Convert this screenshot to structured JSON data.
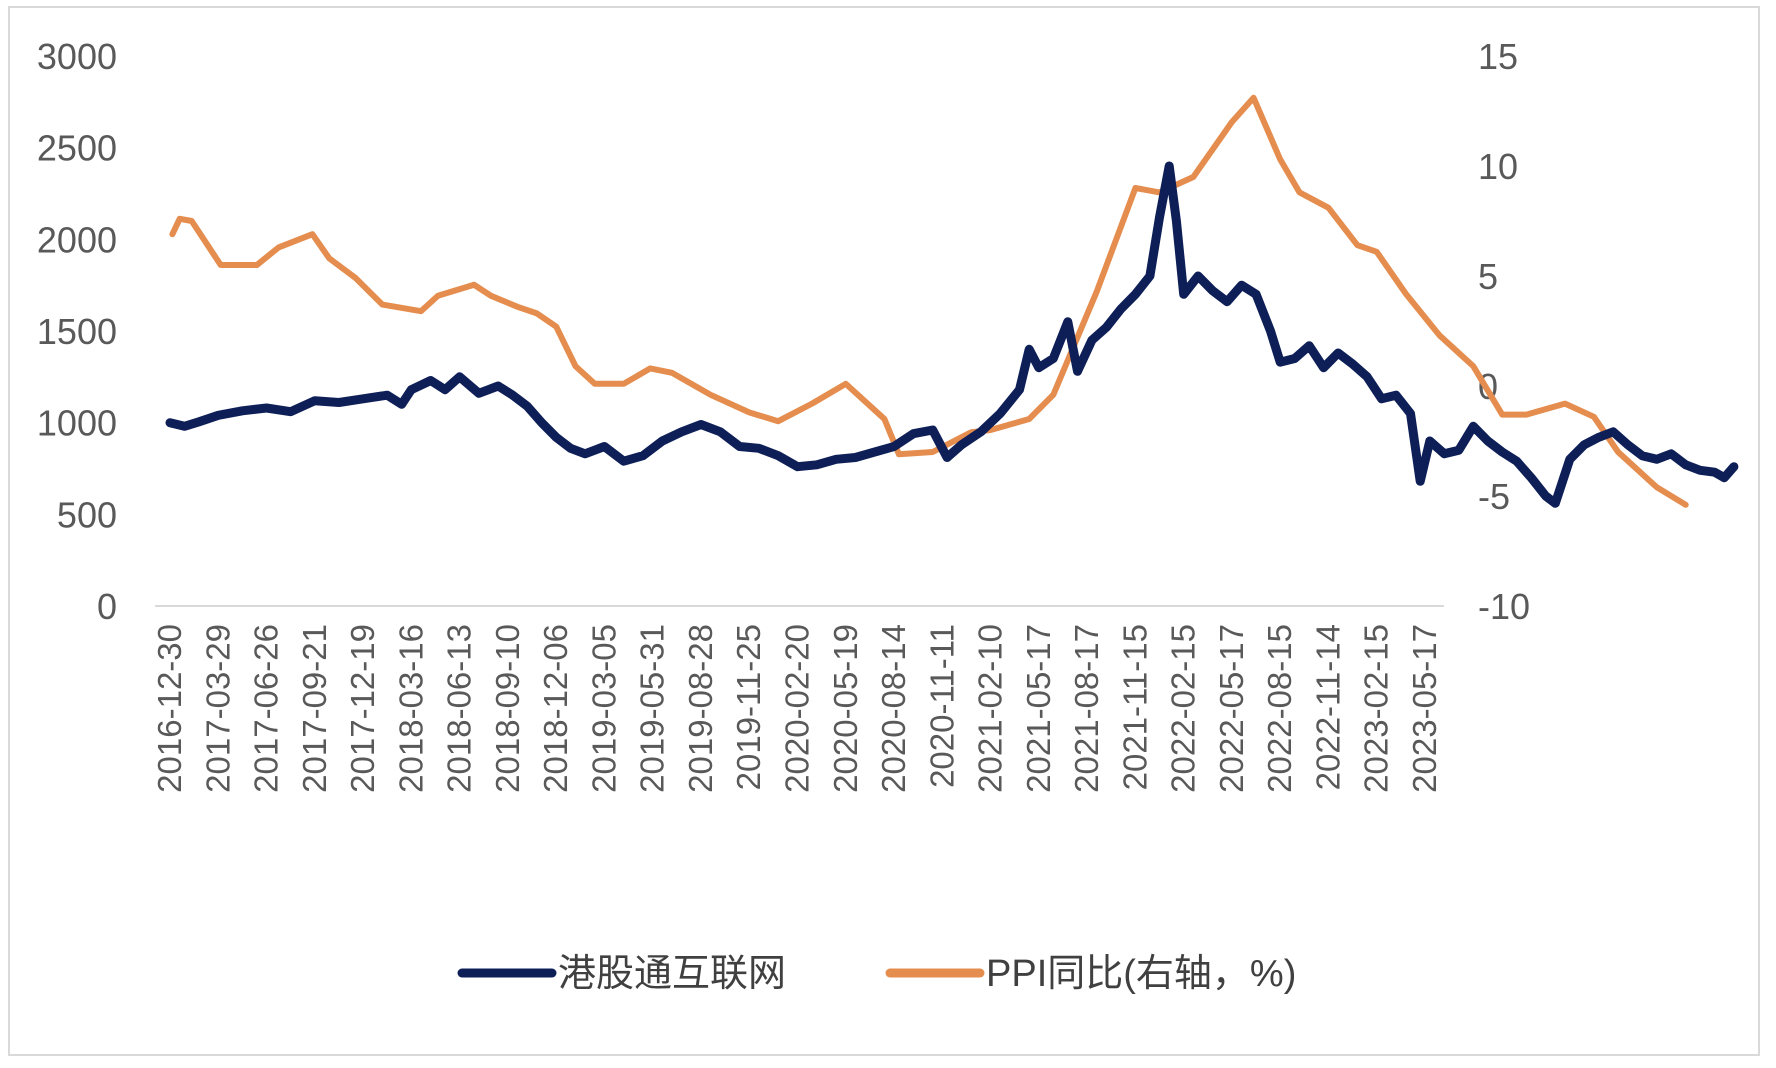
{
  "chart_data": {
    "type": "line",
    "title": "",
    "xlabel": "",
    "ylabel_left": "",
    "ylabel_right": "",
    "y_left": {
      "min": 0,
      "max": 3000,
      "ticks": [
        0,
        500,
        1000,
        1500,
        2000,
        2500,
        3000
      ]
    },
    "y_right": {
      "min": -10,
      "max": 15,
      "ticks": [
        -10,
        -5,
        0,
        5,
        10,
        15
      ]
    },
    "x_ticks": [
      "2016-12-30",
      "2017-03-29",
      "2017-06-26",
      "2017-09-21",
      "2017-12-19",
      "2018-03-16",
      "2018-06-13",
      "2018-09-10",
      "2018-12-06",
      "2019-03-05",
      "2019-05-31",
      "2019-08-28",
      "2019-11-25",
      "2020-02-20",
      "2020-05-19",
      "2020-08-14",
      "2020-11-11",
      "2021-02-10",
      "2021-05-17",
      "2021-08-17",
      "2021-11-15",
      "2022-02-15",
      "2022-05-17",
      "2022-08-15",
      "2022-11-14",
      "2023-02-15",
      "2023-05-17"
    ],
    "grid": false,
    "legend_position": "bottom",
    "series": [
      {
        "name": "港股通互联网",
        "axis": "left",
        "color": "#0e1f57",
        "points": [
          [
            0,
            1000
          ],
          [
            0.3,
            980
          ],
          [
            0.6,
            1005
          ],
          [
            1.0,
            1040
          ],
          [
            1.5,
            1065
          ],
          [
            2.0,
            1080
          ],
          [
            2.5,
            1060
          ],
          [
            3.0,
            1120
          ],
          [
            3.5,
            1110
          ],
          [
            4.0,
            1130
          ],
          [
            4.5,
            1150
          ],
          [
            4.8,
            1100
          ],
          [
            5.0,
            1180
          ],
          [
            5.4,
            1230
          ],
          [
            5.7,
            1180
          ],
          [
            6.0,
            1250
          ],
          [
            6.4,
            1160
          ],
          [
            6.8,
            1200
          ],
          [
            7.1,
            1150
          ],
          [
            7.4,
            1090
          ],
          [
            7.7,
            1000
          ],
          [
            8.0,
            920
          ],
          [
            8.3,
            860
          ],
          [
            8.6,
            830
          ],
          [
            9.0,
            870
          ],
          [
            9.4,
            790
          ],
          [
            9.8,
            820
          ],
          [
            10.2,
            900
          ],
          [
            10.6,
            950
          ],
          [
            11.0,
            990
          ],
          [
            11.4,
            950
          ],
          [
            11.8,
            870
          ],
          [
            12.2,
            860
          ],
          [
            12.6,
            820
          ],
          [
            13.0,
            760
          ],
          [
            13.4,
            770
          ],
          [
            13.8,
            800
          ],
          [
            14.2,
            810
          ],
          [
            14.6,
            840
          ],
          [
            15.0,
            870
          ],
          [
            15.4,
            940
          ],
          [
            15.8,
            960
          ],
          [
            16.1,
            810
          ],
          [
            16.4,
            880
          ],
          [
            16.8,
            950
          ],
          [
            17.2,
            1050
          ],
          [
            17.6,
            1180
          ],
          [
            17.8,
            1400
          ],
          [
            18.0,
            1300
          ],
          [
            18.3,
            1350
          ],
          [
            18.6,
            1550
          ],
          [
            18.8,
            1280
          ],
          [
            19.1,
            1450
          ],
          [
            19.4,
            1520
          ],
          [
            19.7,
            1620
          ],
          [
            20.0,
            1700
          ],
          [
            20.3,
            1800
          ],
          [
            20.5,
            2120
          ],
          [
            20.7,
            2400
          ],
          [
            20.85,
            2100
          ],
          [
            21.0,
            1700
          ],
          [
            21.3,
            1800
          ],
          [
            21.6,
            1720
          ],
          [
            21.9,
            1660
          ],
          [
            22.2,
            1750
          ],
          [
            22.5,
            1700
          ],
          [
            22.8,
            1500
          ],
          [
            23.0,
            1330
          ],
          [
            23.3,
            1350
          ],
          [
            23.6,
            1420
          ],
          [
            23.9,
            1300
          ],
          [
            24.2,
            1380
          ],
          [
            24.5,
            1320
          ],
          [
            24.8,
            1250
          ],
          [
            25.1,
            1130
          ],
          [
            25.4,
            1150
          ],
          [
            25.7,
            1050
          ],
          [
            25.9,
            680
          ],
          [
            26.1,
            900
          ],
          [
            26.4,
            830
          ],
          [
            26.7,
            850
          ],
          [
            27.0,
            980
          ],
          [
            27.3,
            900
          ],
          [
            27.6,
            840
          ],
          [
            27.9,
            790
          ],
          [
            28.2,
            700
          ],
          [
            28.5,
            600
          ],
          [
            28.7,
            560
          ],
          [
            29.0,
            800
          ],
          [
            29.3,
            880
          ],
          [
            29.6,
            920
          ],
          [
            29.9,
            950
          ],
          [
            30.2,
            880
          ],
          [
            30.5,
            820
          ],
          [
            30.8,
            800
          ],
          [
            31.1,
            830
          ],
          [
            31.4,
            770
          ],
          [
            31.7,
            740
          ],
          [
            32.0,
            730
          ],
          [
            32.2,
            700
          ],
          [
            32.4,
            760
          ]
        ]
      },
      {
        "name": "PPI同比(右轴，%)",
        "axis": "right",
        "color": "#e58d4e",
        "points": [
          [
            0.05,
            6.9
          ],
          [
            0.2,
            7.6
          ],
          [
            0.45,
            7.5
          ],
          [
            1.05,
            5.5
          ],
          [
            1.8,
            5.5
          ],
          [
            2.25,
            6.3
          ],
          [
            2.95,
            6.9
          ],
          [
            3.3,
            5.8
          ],
          [
            3.85,
            4.9
          ],
          [
            4.4,
            3.7
          ],
          [
            5.2,
            3.4
          ],
          [
            5.55,
            4.1
          ],
          [
            6.3,
            4.6
          ],
          [
            6.65,
            4.1
          ],
          [
            7.2,
            3.6
          ],
          [
            7.6,
            3.3
          ],
          [
            8.0,
            2.7
          ],
          [
            8.4,
            0.9
          ],
          [
            8.8,
            0.1
          ],
          [
            9.4,
            0.1
          ],
          [
            9.95,
            0.8
          ],
          [
            10.4,
            0.6
          ],
          [
            11.2,
            -0.4
          ],
          [
            12.0,
            -1.2
          ],
          [
            12.6,
            -1.6
          ],
          [
            13.3,
            -0.8
          ],
          [
            14.0,
            0.1
          ],
          [
            14.8,
            -1.5
          ],
          [
            15.1,
            -3.1
          ],
          [
            15.8,
            -3.0
          ],
          [
            16.6,
            -2.1
          ],
          [
            17.0,
            -2.0
          ],
          [
            17.8,
            -1.5
          ],
          [
            18.3,
            -0.4
          ],
          [
            19.2,
            4.3
          ],
          [
            20.0,
            9.0
          ],
          [
            20.5,
            8.8
          ],
          [
            21.2,
            9.5
          ],
          [
            22.0,
            12.0
          ],
          [
            22.45,
            13.1
          ],
          [
            23.0,
            10.3
          ],
          [
            23.4,
            8.8
          ],
          [
            24.0,
            8.1
          ],
          [
            24.6,
            6.4
          ],
          [
            25.0,
            6.1
          ],
          [
            25.6,
            4.2
          ],
          [
            26.3,
            2.3
          ],
          [
            27.0,
            0.9
          ],
          [
            27.6,
            -1.3
          ],
          [
            28.1,
            -1.3
          ],
          [
            28.9,
            -0.8
          ],
          [
            29.5,
            -1.4
          ],
          [
            30.0,
            -3.0
          ],
          [
            30.8,
            -4.6
          ],
          [
            31.4,
            -5.4
          ]
        ]
      }
    ]
  }
}
